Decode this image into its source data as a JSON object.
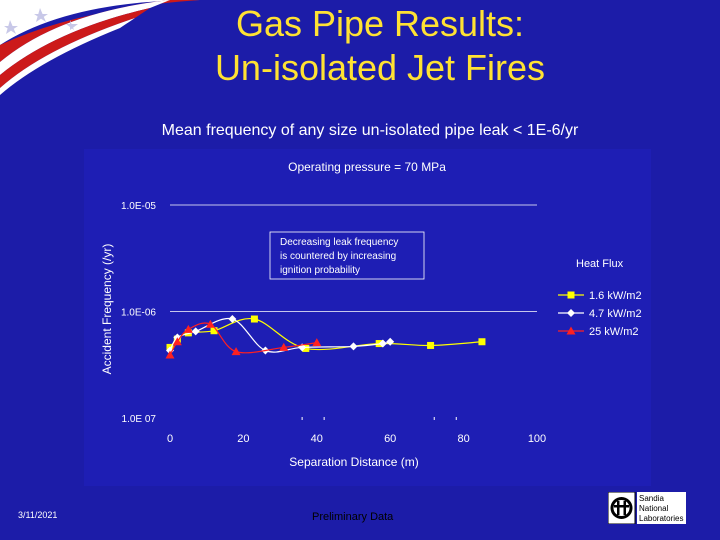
{
  "slide": {
    "title_line1": "Gas Pipe Results:",
    "title_line2": "Un-isolated Jet Fires",
    "subtitle": "Mean frequency of any size un-isolated pipe leak < 1E-6/yr",
    "date": "3/11/2021",
    "footer": "Preliminary Data",
    "logo_lines": [
      "Sandia",
      "National",
      "Laboratories"
    ],
    "colors": {
      "background": "#1c1ca8",
      "title": "#ffe233",
      "chart_bg": "#1e1eb4"
    }
  },
  "chart_data": {
    "type": "line",
    "title": "Operating pressure = 70 MPa",
    "xlabel": "Separation Distance (m)",
    "ylabel": "Accident Frequency (/yr)",
    "xlim": [
      0,
      100
    ],
    "ylim": [
      1e-07,
      1e-05
    ],
    "yscale": "log",
    "x_ticks": [
      "0",
      "20",
      "40",
      "60",
      "80",
      "100"
    ],
    "y_ticks": [
      "1.0E-05",
      "1.0E-06",
      "1.0E 07"
    ],
    "grid": "horizontal",
    "legend_title": "Heat Flux",
    "legend_position": "right",
    "annotation": [
      "Decreasing leak frequency",
      "is countered by increasing",
      "ignition probability"
    ],
    "series": [
      {
        "name": "1.6 kW/m2",
        "color": "#ffff00",
        "marker": "square",
        "x": [
          0,
          2,
          5,
          12,
          23,
          37,
          57,
          71,
          85
        ],
        "y": [
          4.6e-07,
          5.5e-07,
          6.3e-07,
          6.6e-07,
          8.5e-07,
          4.5e-07,
          5e-07,
          4.8e-07,
          5.2e-07
        ]
      },
      {
        "name": "4.7 kW/m2",
        "color": "#ffffff",
        "marker": "diamond",
        "x": [
          0,
          2,
          7,
          17,
          26,
          36,
          50,
          58,
          60
        ],
        "y": [
          4.3e-07,
          5.7e-07,
          6.5e-07,
          8.5e-07,
          4.3e-07,
          4.6e-07,
          4.7e-07,
          5e-07,
          5.2e-07
        ]
      },
      {
        "name": "25 kW/m2",
        "color": "#ff2020",
        "marker": "triangle",
        "x": [
          0,
          2,
          5,
          11,
          18,
          31,
          40
        ],
        "y": [
          3.9e-07,
          5.2e-07,
          6.8e-07,
          7.6e-07,
          4.2e-07,
          4.6e-07,
          5.1e-07
        ]
      }
    ]
  }
}
